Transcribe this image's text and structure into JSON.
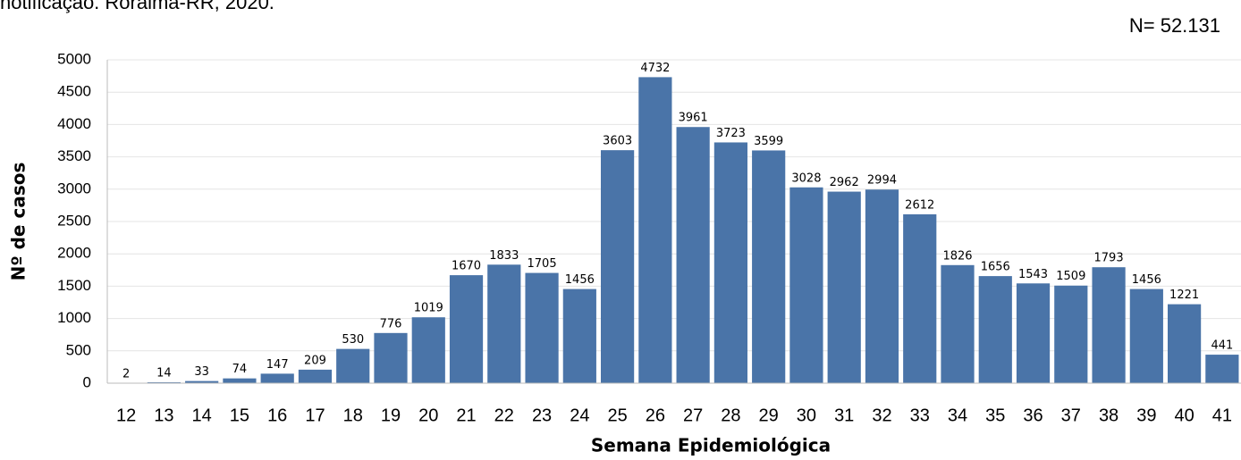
{
  "chart_data": {
    "type": "bar",
    "title": "notificação. Roraima-RR, 2020.",
    "annotation": "N= 52.131",
    "x_label": "Semana Epidemiológica",
    "y_label": "Nº de casos",
    "categories": [
      "12",
      "13",
      "14",
      "15",
      "16",
      "17",
      "18",
      "19",
      "20",
      "21",
      "22",
      "23",
      "24",
      "25",
      "26",
      "27",
      "28",
      "29",
      "30",
      "31",
      "32",
      "33",
      "34",
      "35",
      "36",
      "37",
      "38",
      "39",
      "40",
      "41"
    ],
    "values": [
      2,
      14,
      33,
      74,
      147,
      209,
      530,
      776,
      1019,
      1670,
      1833,
      1705,
      1456,
      3603,
      4732,
      3961,
      3723,
      3599,
      3028,
      2962,
      2994,
      2612,
      1826,
      1656,
      1543,
      1509,
      1793,
      1456,
      1221,
      441
    ],
    "color": "#4a74a8",
    "ylim": [
      0,
      5000
    ],
    "yticks": [
      0,
      500,
      1000,
      1500,
      2000,
      2500,
      3000,
      3500,
      4000,
      4500,
      5000
    ],
    "grid": true
  }
}
